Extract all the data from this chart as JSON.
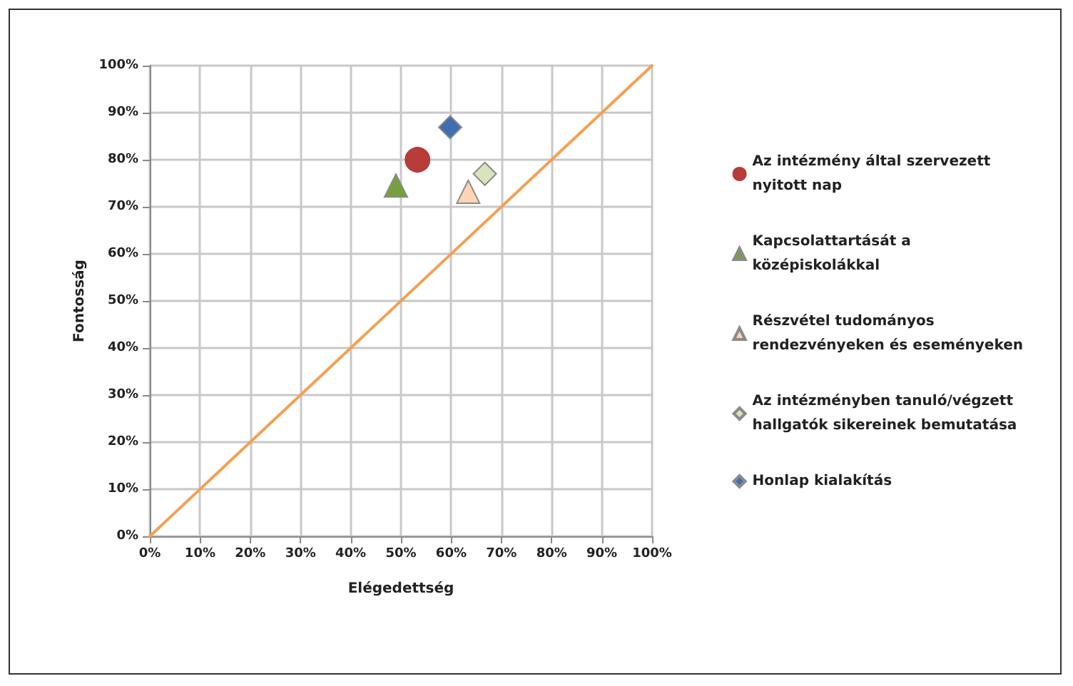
{
  "chart_data": {
    "type": "scatter",
    "xlabel": "Elégedettség",
    "ylabel": "Fontosság",
    "xlim": [
      0,
      100
    ],
    "ylim": [
      0,
      100
    ],
    "xticks": [
      {
        "value": 0,
        "label": "0%"
      },
      {
        "value": 10,
        "label": "10%"
      },
      {
        "value": 20,
        "label": "20%"
      },
      {
        "value": 30,
        "label": "30%"
      },
      {
        "value": 40,
        "label": "40%"
      },
      {
        "value": 50,
        "label": "50%"
      },
      {
        "value": 60,
        "label": "60%"
      },
      {
        "value": 70,
        "label": "70%"
      },
      {
        "value": 80,
        "label": "80%"
      },
      {
        "value": 90,
        "label": "90%"
      },
      {
        "value": 100,
        "label": "100%"
      }
    ],
    "yticks": [
      {
        "value": 0,
        "label": "0%"
      },
      {
        "value": 10,
        "label": "10%"
      },
      {
        "value": 20,
        "label": "20%"
      },
      {
        "value": 30,
        "label": "30%"
      },
      {
        "value": 40,
        "label": "40%"
      },
      {
        "value": 50,
        "label": "50%"
      },
      {
        "value": 60,
        "label": "60%"
      },
      {
        "value": 70,
        "label": "70%"
      },
      {
        "value": 80,
        "label": "80%"
      },
      {
        "value": 90,
        "label": "90%"
      },
      {
        "value": 100,
        "label": "100%"
      }
    ],
    "grid": true,
    "legend": "right",
    "series": [
      {
        "name": "Az intézmény által szervezett nyitott nap",
        "color": "#b83c3a",
        "marker": "circle",
        "x": [
          53.3
        ],
        "values": [
          80
        ]
      },
      {
        "name": "Kapcsolattartását a középiskolákkal",
        "color": "#77a03c",
        "marker": "triangle",
        "x": [
          49
        ],
        "values": [
          74.5
        ]
      },
      {
        "name": "Részvétel tudományos rendezvényeken és eseményeken",
        "color": "#fcd5b4",
        "marker": "triangle",
        "x": [
          63.4
        ],
        "values": [
          73.2
        ]
      },
      {
        "name": "Az intézményben tanuló/végzett hallgatók sikereinek bemutatása",
        "color": "#d7e4bd",
        "marker": "diamond",
        "x": [
          66.7
        ],
        "values": [
          77
        ]
      },
      {
        "name": "Honlap kialakítás",
        "color": "#3f6fb0",
        "marker": "diamond",
        "x": [
          59.8
        ],
        "values": [
          86.9
        ]
      },
      {
        "type": "line",
        "color": "#f4a050",
        "marker": "none",
        "x": [
          0,
          100
        ],
        "values": [
          0,
          100
        ]
      }
    ]
  }
}
